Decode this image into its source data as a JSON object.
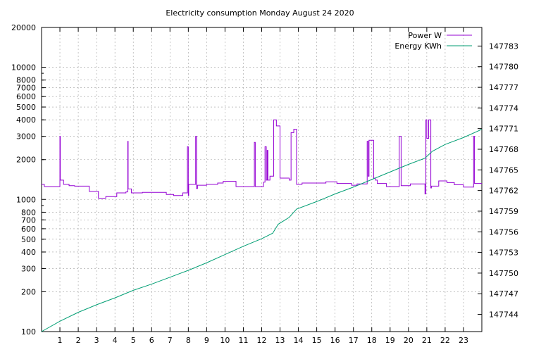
{
  "chart_data": {
    "type": "line",
    "title": "Electricity consumption Monday August 24 2020",
    "xlabel": "",
    "ylabel": "",
    "y2label": "",
    "grid": true,
    "legend_position": "top-right",
    "x_ticks": [
      1,
      2,
      3,
      4,
      5,
      6,
      7,
      8,
      9,
      10,
      11,
      12,
      13,
      14,
      15,
      16,
      17,
      18,
      19,
      20,
      21,
      22,
      23
    ],
    "xlim": [
      0,
      24
    ],
    "y_scale": "log",
    "ylim": [
      100,
      20000
    ],
    "y_ticks": [
      100,
      200,
      300,
      400,
      500,
      600,
      700,
      800,
      1000,
      2000,
      3000,
      4000,
      5000,
      6000,
      7000,
      8000,
      10000,
      20000
    ],
    "y_tick_labels": [
      "100",
      "200",
      "300",
      "400",
      "500",
      "600",
      "700",
      "800",
      "1000",
      "2000",
      "3000",
      "4000",
      "5000",
      "6000",
      "7000",
      "8000",
      "10000",
      "20000"
    ],
    "y2lim": [
      147741.5,
      147785.7
    ],
    "y2_ticks": [
      147744,
      147747,
      147750,
      147753,
      147756,
      147759,
      147762,
      147765,
      147768,
      147771,
      147774,
      147777,
      147780,
      147783
    ],
    "colors": {
      "power": "#9400d3",
      "energy": "#009e73",
      "grid": "#a0a0a0"
    },
    "series": [
      {
        "name": "Power W",
        "axis": "left",
        "color": "#9400d3",
        "x": [
          0,
          0.15,
          0.15,
          1,
          1,
          1.02,
          1.02,
          1.2,
          1.2,
          1.5,
          1.5,
          1.8,
          1.8,
          2.6,
          2.6,
          3.1,
          3.1,
          3.5,
          3.5,
          4.1,
          4.1,
          4.6,
          4.6,
          4.7,
          4.7,
          4.72,
          4.72,
          4.9,
          4.9,
          5.5,
          5.5,
          6.8,
          6.8,
          7.2,
          7.2,
          7.7,
          7.7,
          7.95,
          7.95,
          8.0,
          8.0,
          8.02,
          8.02,
          8.4,
          8.4,
          8.45,
          8.45,
          8.5,
          8.5,
          9.0,
          9.0,
          9.6,
          9.6,
          9.9,
          9.9,
          10.6,
          10.6,
          11.6,
          11.6,
          11.65,
          11.65,
          12.1,
          12.1,
          12.18,
          12.18,
          12.25,
          12.25,
          12.3,
          12.3,
          12.34,
          12.34,
          12.45,
          12.45,
          12.65,
          12.65,
          12.8,
          12.8,
          13.0,
          13.0,
          13.5,
          13.5,
          13.6,
          13.6,
          13.75,
          13.75,
          13.9,
          13.9,
          14.2,
          14.2,
          15.5,
          15.5,
          16.1,
          16.1,
          16.9,
          16.9,
          17.2,
          17.2,
          17.75,
          17.75,
          17.8,
          17.8,
          17.85,
          17.85,
          18.1,
          18.1,
          18.2,
          18.2,
          18.3,
          18.3,
          18.8,
          18.8,
          19.5,
          19.5,
          19.6,
          19.6,
          20.1,
          20.1,
          20.9,
          20.9,
          20.95,
          20.95,
          21.0,
          21.0,
          21.1,
          21.1,
          21.22,
          21.22,
          21.25,
          21.25,
          21.65,
          21.65,
          22.1,
          22.1,
          22.5,
          22.5,
          23.0,
          23.0,
          23.55,
          23.55,
          23.6,
          23.6,
          24.0
        ],
        "values": [
          1300,
          1300,
          1250,
          1250,
          3000,
          3000,
          1400,
          1400,
          1300,
          1300,
          1270,
          1270,
          1260,
          1260,
          1150,
          1150,
          1020,
          1020,
          1050,
          1050,
          1120,
          1120,
          1140,
          1140,
          2750,
          2750,
          1200,
          1200,
          1120,
          1120,
          1130,
          1130,
          1090,
          1090,
          1070,
          1070,
          1120,
          1120,
          2500,
          2500,
          1070,
          1070,
          1300,
          1300,
          3000,
          3000,
          1210,
          1210,
          1280,
          1280,
          1300,
          1300,
          1330,
          1330,
          1370,
          1370,
          1250,
          1250,
          2700,
          2700,
          1250,
          1250,
          1350,
          1350,
          2500,
          2500,
          1400,
          1400,
          2350,
          2350,
          1400,
          1400,
          1500,
          1500,
          4000,
          4000,
          3600,
          3600,
          1450,
          1450,
          1400,
          1400,
          3200,
          3200,
          3400,
          3400,
          1300,
          1300,
          1330,
          1330,
          1360,
          1360,
          1320,
          1320,
          1280,
          1280,
          1310,
          1310,
          2750,
          2750,
          1500,
          1500,
          2800,
          2800,
          1450,
          1450,
          1400,
          1400,
          1320,
          1320,
          1250,
          1250,
          3000,
          3000,
          1270,
          1270,
          1310,
          1310,
          1100,
          1100,
          4000,
          4000,
          2900,
          2900,
          4000,
          4000,
          1220,
          1220,
          1260,
          1260,
          1380,
          1380,
          1340,
          1340,
          1290,
          1290,
          1240,
          1240,
          3000,
          3000,
          1320,
          1320
        ]
      },
      {
        "name": "Energy KWh",
        "axis": "right",
        "color": "#009e73",
        "x": [
          0,
          1,
          2,
          3,
          4,
          5,
          6,
          7,
          8,
          9,
          10,
          11,
          12,
          12.6,
          12.9,
          13.5,
          13.9,
          15,
          16,
          17,
          18,
          19,
          20,
          20.9,
          21.3,
          22,
          23,
          24
        ],
        "values": [
          147741.5,
          147743.0,
          147744.3,
          147745.4,
          147746.4,
          147747.5,
          147748.4,
          147749.4,
          147750.4,
          147751.5,
          147752.7,
          147753.9,
          147755.0,
          147755.8,
          147757.1,
          147758.1,
          147759.3,
          147760.4,
          147761.5,
          147762.5,
          147763.6,
          147764.7,
          147765.8,
          147766.7,
          147767.7,
          147768.7,
          147769.7,
          147770.9
        ]
      }
    ]
  }
}
